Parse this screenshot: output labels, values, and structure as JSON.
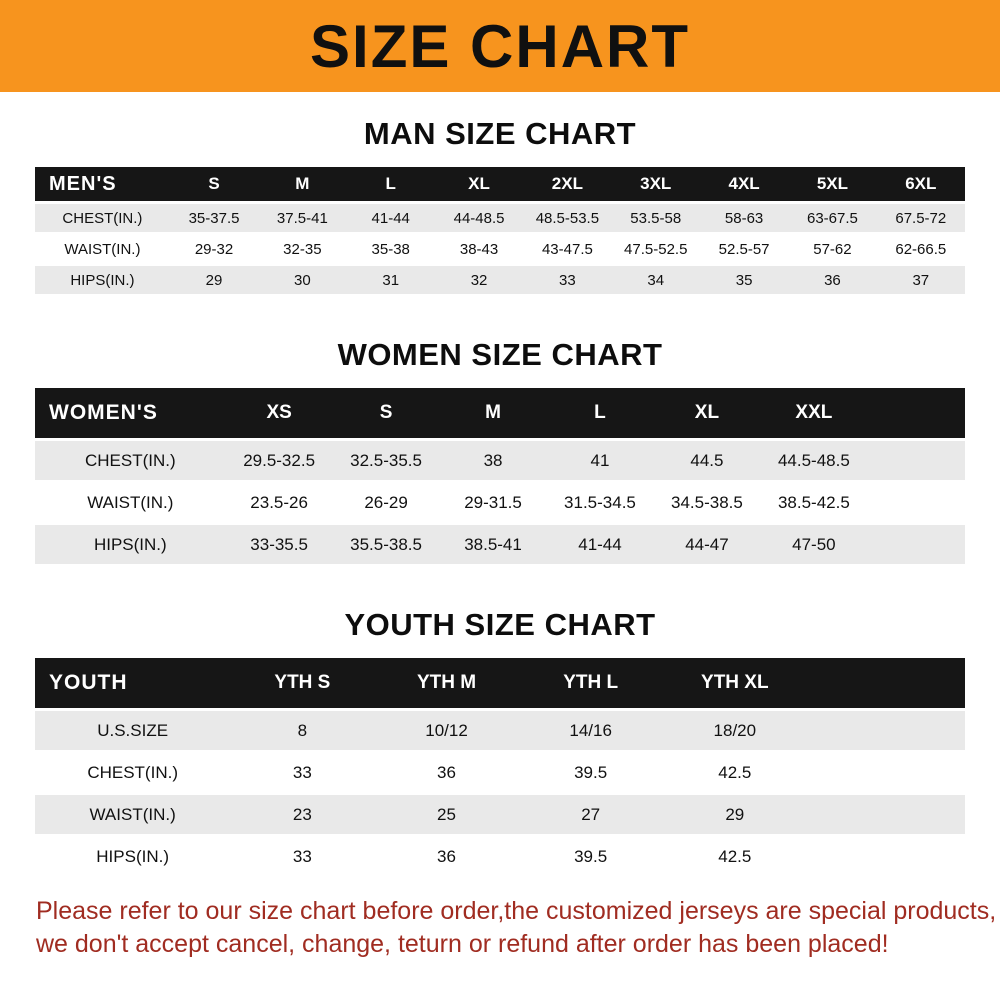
{
  "banner": {
    "title": "SIZE CHART",
    "background_color": "#F7941E"
  },
  "chart_data": [
    {
      "type": "table",
      "title": "MAN SIZE CHART",
      "columns": [
        "MEN'S",
        "S",
        "M",
        "L",
        "XL",
        "2XL",
        "3XL",
        "4XL",
        "5XL",
        "6XL"
      ],
      "rows": [
        [
          "CHEST(IN.)",
          "35-37.5",
          "37.5-41",
          "41-44",
          "44-48.5",
          "48.5-53.5",
          "53.5-58",
          "58-63",
          "63-67.5",
          "67.5-72"
        ],
        [
          "WAIST(IN.)",
          "29-32",
          "32-35",
          "35-38",
          "38-43",
          "43-47.5",
          "47.5-52.5",
          "52.5-57",
          "57-62",
          "62-66.5"
        ],
        [
          "HIPS(IN.)",
          "29",
          "30",
          "31",
          "32",
          "33",
          "34",
          "35",
          "36",
          "37"
        ]
      ],
      "layout": {
        "header_bg": "#161616",
        "stripe_bg": "#e9e9e9",
        "trailing_blank_column": false
      }
    },
    {
      "type": "table",
      "title": "WOMEN SIZE CHART",
      "columns": [
        "WOMEN'S",
        "XS",
        "S",
        "M",
        "L",
        "XL",
        "XXL"
      ],
      "rows": [
        [
          "CHEST(IN.)",
          "29.5-32.5",
          "32.5-35.5",
          "38",
          "41",
          "44.5",
          "44.5-48.5"
        ],
        [
          "WAIST(IN.)",
          "23.5-26",
          "26-29",
          "29-31.5",
          "31.5-34.5",
          "34.5-38.5",
          "38.5-42.5"
        ],
        [
          "HIPS(IN.)",
          "33-35.5",
          "35.5-38.5",
          "38.5-41",
          "41-44",
          "44-47",
          "47-50"
        ]
      ],
      "layout": {
        "header_bg": "#161616",
        "stripe_bg": "#e9e9e9",
        "trailing_blank_column": true
      }
    },
    {
      "type": "table",
      "title": "YOUTH SIZE CHART",
      "columns": [
        "YOUTH",
        "YTH S",
        "YTH M",
        "YTH L",
        "YTH XL"
      ],
      "rows": [
        [
          "U.S.SIZE",
          "8",
          "10/12",
          "14/16",
          "18/20"
        ],
        [
          "CHEST(IN.)",
          "33",
          "36",
          "39.5",
          "42.5"
        ],
        [
          "WAIST(IN.)",
          "23",
          "25",
          "27",
          "29"
        ],
        [
          "HIPS(IN.)",
          "33",
          "36",
          "39.5",
          "42.5"
        ]
      ],
      "layout": {
        "header_bg": "#161616",
        "stripe_bg": "#e9e9e9",
        "trailing_blank_column": true
      }
    }
  ],
  "footer": {
    "line1": "Please refer to our size chart before order,the customized jerseys are special products,",
    "line2": "we don't accept cancel, change, teturn or refund after order has been placed!",
    "text_color": "#a02c21"
  }
}
